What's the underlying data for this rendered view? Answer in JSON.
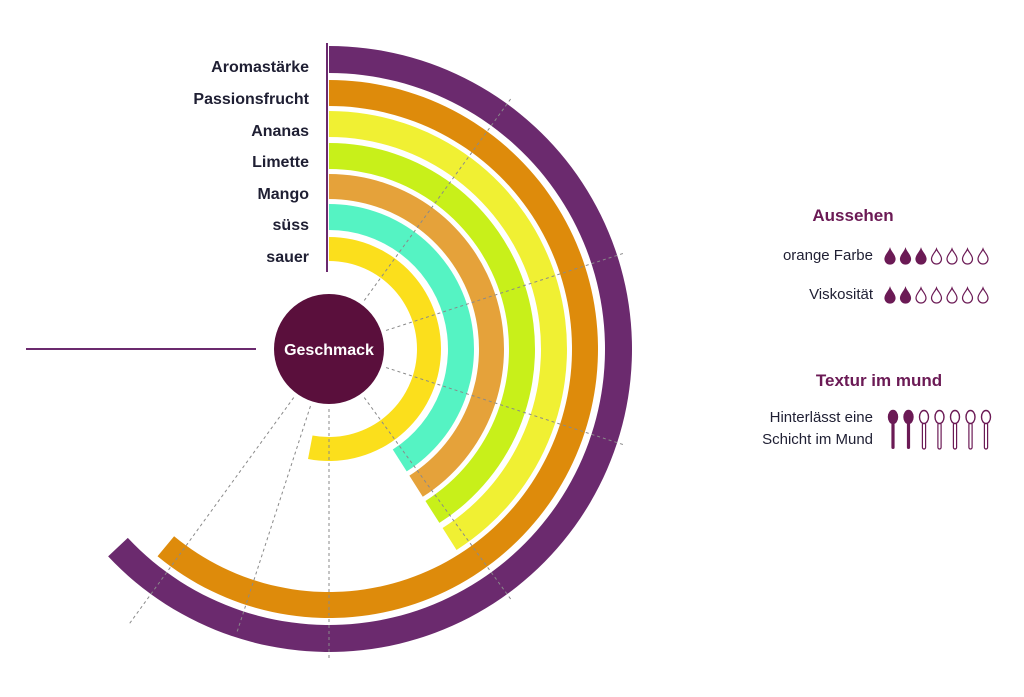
{
  "center_label": "Geschmack",
  "colors": {
    "accent": "#6b2a6e",
    "center": "#5a0f3c",
    "text": "#1f1f33",
    "guide": "#8a8a8a"
  },
  "rings": [
    {
      "label": "Aromastärke",
      "color": "#6b2a6e",
      "fraction": 0.63
    },
    {
      "label": "Passionsfrucht",
      "color": "#de8b0b",
      "fraction": 0.61
    },
    {
      "label": "Ananas",
      "color": "#f0f033",
      "fraction": 0.41
    },
    {
      "label": "Limette",
      "color": "#c8f01a",
      "fraction": 0.41
    },
    {
      "label": "Mango",
      "color": "#e5a23a",
      "fraction": 0.41
    },
    {
      "label": "süss",
      "color": "#55f3c3",
      "fraction": 0.41
    },
    {
      "label": "sauer",
      "color": "#fbdf1c",
      "fraction": 0.53
    }
  ],
  "aussehen": {
    "title": "Aussehen",
    "items": [
      {
        "label": "orange Farbe",
        "filled": 3,
        "total": 7,
        "icon": "drop-icon"
      },
      {
        "label": "Viskosität",
        "filled": 2,
        "total": 7,
        "icon": "drop-icon"
      }
    ]
  },
  "textur": {
    "title": "Textur im mund",
    "line1": "Hinterlässt eine",
    "line2": "Schicht im Mund",
    "filled": 2,
    "total": 7,
    "icon": "spoon-icon"
  }
}
